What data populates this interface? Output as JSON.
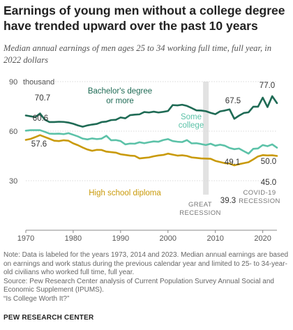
{
  "title": "Earnings of young men without a college degree have trended upward over the past 10 years",
  "subtitle": "Median annual earnings of men ages 25 to 34 working full time, full year, in 2022 dollars",
  "note": "Note: Data is labeled for the years 1973, 2014 and 2023. Median annual earnings are based on earnings and work status during the previous calendar year and limited to 25- to 34-year-old civilians who worked full time, full year.",
  "source": "Source: Pew Research Center analysis of Current Population Survey Annual Social and Economic Supplement (IPUMS).",
  "report": "“Is College Worth It?”",
  "brand": "PEW RESEARCH CENTER",
  "chart_data": {
    "type": "line",
    "ylabel_unit": "thousand",
    "xlim": [
      1970,
      2023
    ],
    "ylim": [
      0,
      90
    ],
    "x_ticks": [
      1970,
      1980,
      1990,
      2000,
      2010,
      2020
    ],
    "y_ticks": [
      30,
      60,
      90
    ],
    "grid": true,
    "x": [
      1970,
      1971,
      1972,
      1973,
      1974,
      1975,
      1976,
      1977,
      1978,
      1979,
      1980,
      1981,
      1982,
      1983,
      1984,
      1985,
      1986,
      1987,
      1988,
      1989,
      1990,
      1991,
      1992,
      1993,
      1994,
      1995,
      1996,
      1997,
      1998,
      1999,
      2000,
      2001,
      2002,
      2003,
      2004,
      2005,
      2006,
      2007,
      2008,
      2009,
      2010,
      2011,
      2012,
      2013,
      2014,
      2015,
      2016,
      2017,
      2018,
      2019,
      2020,
      2021,
      2022,
      2023
    ],
    "series": [
      {
        "name": "Bachelor's degree or more",
        "color": "#1f6b55",
        "values": [
          69.5,
          69.0,
          68.5,
          70.7,
          67.0,
          65.5,
          65.5,
          65.7,
          65.6,
          65.2,
          64.5,
          63.5,
          62.7,
          63.5,
          64.0,
          64.4,
          65.5,
          65.8,
          66.7,
          66.9,
          68.3,
          67.8,
          69.7,
          70.0,
          70.2,
          71.6,
          71.3,
          71.8,
          71.3,
          71.7,
          72.2,
          75.8,
          75.6,
          76.0,
          75.3,
          74.0,
          72.6,
          72.5,
          72.1,
          71.1,
          70.3,
          72.0,
          72.5,
          73.2,
          67.5,
          69.4,
          71.0,
          71.4,
          74.8,
          74.8,
          80.3,
          74.6,
          81.2,
          77.0
        ]
      },
      {
        "name": "Some college",
        "color": "#5cc2a8",
        "values": [
          60.3,
          60.6,
          60.6,
          60.6,
          59.6,
          58.5,
          58.4,
          58.5,
          58.2,
          58.8,
          57.8,
          56.8,
          55.5,
          55.0,
          55.6,
          55.2,
          55.5,
          57.2,
          54.5,
          54.6,
          54.0,
          52.0,
          52.5,
          52.4,
          53.3,
          52.7,
          53.3,
          53.8,
          53.6,
          54.6,
          55.2,
          54.0,
          53.6,
          53.4,
          54.6,
          52.6,
          52.7,
          52.2,
          51.6,
          52.4,
          51.2,
          51.8,
          51.2,
          49.8,
          49.1,
          49.5,
          47.9,
          46.4,
          49.3,
          49.5,
          51.6,
          50.9,
          52.0,
          50.0
        ]
      },
      {
        "name": "High school diploma",
        "color": "#c99a0a",
        "values": [
          54.7,
          55.3,
          56.4,
          57.6,
          56.5,
          55.4,
          54.2,
          54.0,
          54.5,
          54.2,
          52.6,
          51.5,
          50.1,
          48.9,
          48.1,
          48.7,
          48.6,
          47.6,
          47.3,
          47.0,
          46.0,
          45.6,
          45.2,
          45.0,
          43.5,
          43.8,
          44.1,
          44.8,
          45.3,
          45.6,
          46.4,
          45.8,
          45.2,
          45.4,
          45.0,
          44.1,
          43.8,
          43.5,
          43.4,
          43.3,
          42.0,
          41.3,
          40.6,
          40.4,
          39.3,
          40.0,
          40.6,
          41.2,
          42.9,
          44.7,
          45.5,
          45.3,
          45.4,
          45.0
        ]
      }
    ],
    "data_labels": [
      {
        "series": "Bachelor's degree or more",
        "year": 1973,
        "text": "70.7"
      },
      {
        "series": "Bachelor's degree or more",
        "year": 2014,
        "text": "67.5"
      },
      {
        "series": "Bachelor's degree or more",
        "year": 2023,
        "text": "77.0"
      },
      {
        "series": "Some college",
        "year": 1973,
        "text": "60.6"
      },
      {
        "series": "Some college",
        "year": 2014,
        "text": "49.1"
      },
      {
        "series": "Some college",
        "year": 2023,
        "text": "50.0"
      },
      {
        "series": "High school diploma",
        "year": 1973,
        "text": "57.6"
      },
      {
        "series": "High school diploma",
        "year": 2014,
        "text": "39.3"
      },
      {
        "series": "High school diploma",
        "year": 2023,
        "text": "45.0"
      }
    ],
    "series_labels": [
      {
        "series": "Bachelor's degree or more",
        "lines": [
          "Bachelor's degree",
          "or more"
        ]
      },
      {
        "series": "Some college",
        "lines": [
          "Some",
          "college"
        ]
      },
      {
        "series": "High school diploma",
        "lines": [
          "High school diploma"
        ]
      }
    ],
    "annotations": [
      {
        "name": "great-recession",
        "year": 2008,
        "shaded": true,
        "lines": [
          "GREAT",
          "RECESSION"
        ]
      },
      {
        "name": "covid-recession",
        "year": 2020,
        "shaded": false,
        "lines": [
          "COVID-19",
          "RECESSION"
        ]
      }
    ]
  }
}
